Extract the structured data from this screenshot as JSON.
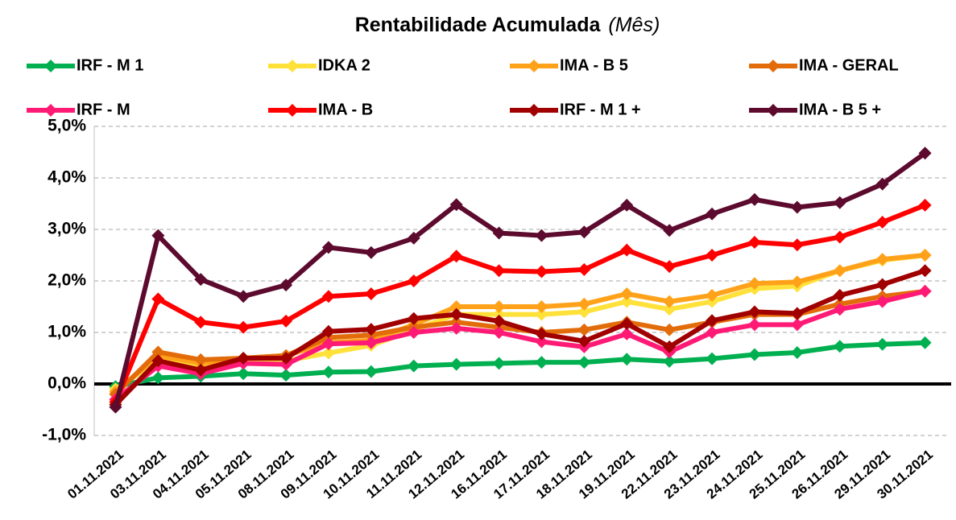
{
  "chart_data": {
    "type": "line",
    "title": "Rentabilidade Acumulada",
    "subtitle": "(Mês)",
    "categories": [
      "01.11.2021",
      "03.11.2021",
      "04.11.2021",
      "05.11.2021",
      "08.11.2021",
      "09.11.2021",
      "10.11.2021",
      "11.11.2021",
      "12.11.2021",
      "16.11.2021",
      "17.11.2021",
      "18.11.2021",
      "19.11.2021",
      "22.11.2021",
      "23.11.2021",
      "24.11.2021",
      "25.11.2021",
      "26.11.2021",
      "29.11.2021",
      "30.11.2021"
    ],
    "series": [
      {
        "name": "IRF - M 1",
        "color": "#00b050",
        "values": [
          -0.05,
          0.12,
          0.15,
          0.2,
          0.17,
          0.23,
          0.24,
          0.35,
          0.38,
          0.4,
          0.42,
          0.42,
          0.48,
          0.44,
          0.49,
          0.57,
          0.61,
          0.73,
          0.77,
          0.8
        ]
      },
      {
        "name": "IDKA 2",
        "color": "#ffe13a",
        "values": [
          -0.1,
          0.45,
          0.35,
          0.45,
          0.45,
          0.6,
          0.75,
          1.05,
          1.35,
          1.35,
          1.35,
          1.4,
          1.6,
          1.45,
          1.6,
          1.85,
          1.9,
          2.2,
          2.4,
          2.5
        ]
      },
      {
        "name": "IMA - B 5",
        "color": "#ffa21a",
        "values": [
          -0.15,
          0.55,
          0.4,
          0.5,
          0.55,
          0.8,
          0.85,
          1.15,
          1.5,
          1.5,
          1.5,
          1.55,
          1.75,
          1.6,
          1.72,
          1.95,
          1.98,
          2.2,
          2.42,
          2.5
        ]
      },
      {
        "name": "IMA - GERAL",
        "color": "#e36c0a",
        "values": [
          -0.2,
          0.62,
          0.47,
          0.5,
          0.55,
          0.9,
          0.95,
          1.1,
          1.2,
          1.1,
          1.0,
          1.05,
          1.2,
          1.05,
          1.2,
          1.35,
          1.35,
          1.55,
          1.7,
          1.8
        ]
      },
      {
        "name": "IRF - M",
        "color": "#ff1a75",
        "values": [
          -0.3,
          0.35,
          0.2,
          0.4,
          0.38,
          0.78,
          0.8,
          1.0,
          1.08,
          1.0,
          0.82,
          0.72,
          0.97,
          0.62,
          1.0,
          1.15,
          1.15,
          1.45,
          1.6,
          1.8
        ]
      },
      {
        "name": "IMA - B",
        "color": "#ff0000",
        "values": [
          -0.35,
          1.65,
          1.2,
          1.1,
          1.22,
          1.7,
          1.75,
          2.0,
          2.48,
          2.2,
          2.18,
          2.22,
          2.6,
          2.28,
          2.5,
          2.75,
          2.7,
          2.85,
          3.14,
          3.47
        ]
      },
      {
        "name": "IRF - M 1 +",
        "color": "#a00000",
        "values": [
          -0.4,
          0.45,
          0.27,
          0.5,
          0.5,
          1.02,
          1.06,
          1.27,
          1.35,
          1.22,
          0.97,
          0.83,
          1.17,
          0.72,
          1.23,
          1.4,
          1.37,
          1.72,
          1.93,
          2.2
        ]
      },
      {
        "name": "IMA - B 5 +",
        "color": "#5c0a2e",
        "values": [
          -0.45,
          2.88,
          2.03,
          1.7,
          1.92,
          2.65,
          2.55,
          2.83,
          3.48,
          2.93,
          2.88,
          2.95,
          3.47,
          2.98,
          3.3,
          3.58,
          3.43,
          3.52,
          3.88,
          4.48
        ]
      }
    ],
    "ylim": [
      -1,
      5
    ],
    "yticks": [
      {
        "value": -1,
        "label": "-1,0%"
      },
      {
        "value": 0,
        "label": "0,0%"
      },
      {
        "value": 1,
        "label": "1,0%"
      },
      {
        "value": 2,
        "label": "2,0%"
      },
      {
        "value": 3,
        "label": "3,0%"
      },
      {
        "value": 4,
        "label": "4,0%"
      },
      {
        "value": 5,
        "label": "5,0%"
      }
    ],
    "grid": true,
    "legend": "top"
  }
}
